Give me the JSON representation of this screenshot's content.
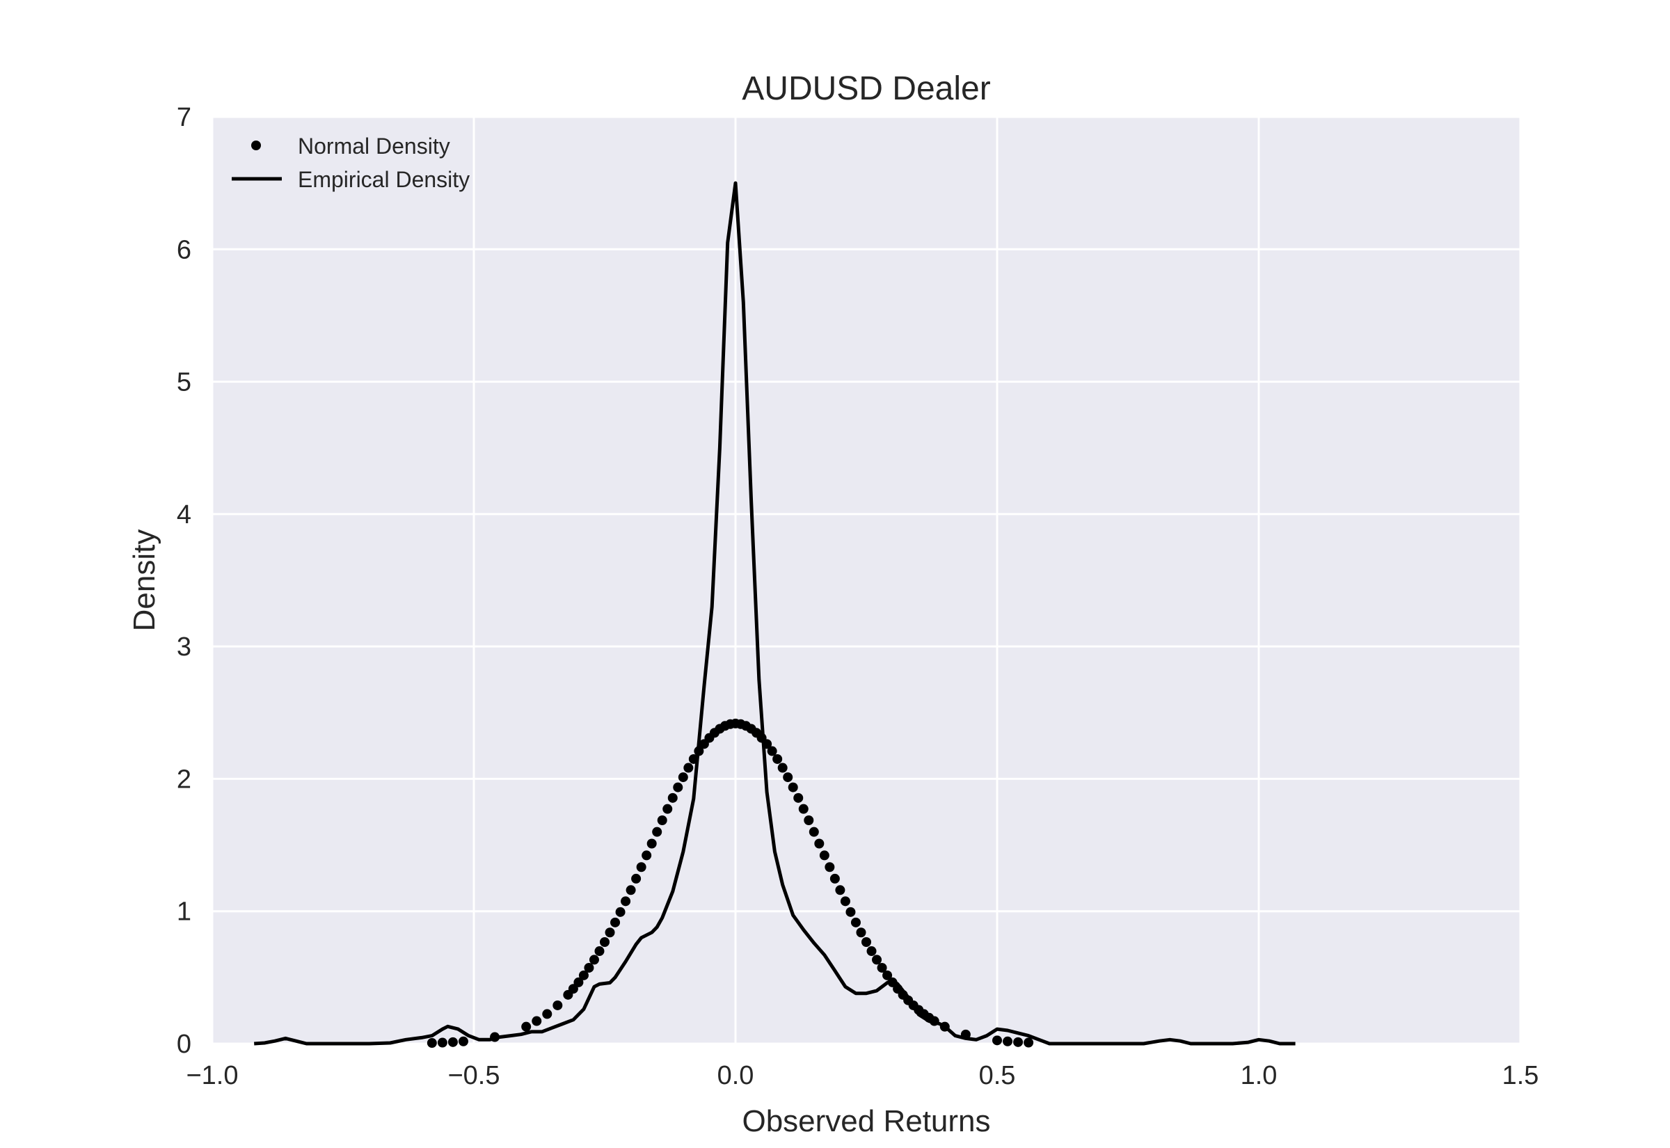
{
  "chart_data": {
    "type": "line",
    "title": "AUDUSD Dealer",
    "xlabel": "Observed Returns",
    "ylabel": "Density",
    "xlim": [
      -1.0,
      1.5
    ],
    "ylim": [
      0,
      7
    ],
    "x_ticks": [
      -1.0,
      -0.5,
      0.0,
      0.5,
      1.0,
      1.5
    ],
    "x_tick_labels": [
      "−1.0",
      "−0.5",
      "0.0",
      "0.5",
      "1.0",
      "1.5"
    ],
    "y_ticks": [
      0,
      1,
      2,
      3,
      4,
      5,
      6,
      7
    ],
    "y_tick_labels": [
      "0",
      "1",
      "2",
      "3",
      "4",
      "5",
      "6",
      "7"
    ],
    "grid": true,
    "background": "#eaeaf2",
    "grid_color": "#ffffff",
    "legend_position": "upper-left",
    "series": [
      {
        "name": "Normal Density",
        "style": "dots",
        "color": "#000000",
        "mu": 0.0,
        "sigma": 0.165,
        "x": [
          -0.58,
          -0.56,
          -0.54,
          -0.52,
          -0.46,
          -0.4,
          -0.38,
          -0.36,
          -0.34,
          -0.32,
          -0.31,
          -0.3,
          -0.29,
          -0.28,
          -0.27,
          -0.26,
          -0.25,
          -0.24,
          -0.23,
          -0.22,
          -0.21,
          -0.2,
          -0.19,
          -0.18,
          -0.17,
          -0.16,
          -0.15,
          -0.14,
          -0.13,
          -0.12,
          -0.11,
          -0.1,
          -0.09,
          -0.08,
          -0.07,
          -0.06,
          -0.05,
          -0.04,
          -0.03,
          -0.02,
          -0.01,
          0.0,
          0.01,
          0.02,
          0.03,
          0.04,
          0.05,
          0.06,
          0.07,
          0.08,
          0.09,
          0.1,
          0.11,
          0.12,
          0.13,
          0.14,
          0.15,
          0.16,
          0.17,
          0.18,
          0.19,
          0.2,
          0.21,
          0.22,
          0.23,
          0.24,
          0.25,
          0.26,
          0.27,
          0.28,
          0.29,
          0.3,
          0.31,
          0.32,
          0.33,
          0.34,
          0.35,
          0.36,
          0.37,
          0.38,
          0.4,
          0.44,
          0.5,
          0.52,
          0.54,
          0.56
        ]
      },
      {
        "name": "Empirical Density",
        "style": "line",
        "color": "#000000",
        "points": [
          [
            -0.92,
            0.0
          ],
          [
            -0.9,
            0.005
          ],
          [
            -0.88,
            0.02
          ],
          [
            -0.86,
            0.04
          ],
          [
            -0.84,
            0.02
          ],
          [
            -0.82,
            0.0
          ],
          [
            -0.8,
            0.0
          ],
          [
            -0.7,
            0.0
          ],
          [
            -0.66,
            0.005
          ],
          [
            -0.63,
            0.03
          ],
          [
            -0.6,
            0.045
          ],
          [
            -0.58,
            0.06
          ],
          [
            -0.56,
            0.11
          ],
          [
            -0.55,
            0.13
          ],
          [
            -0.53,
            0.11
          ],
          [
            -0.51,
            0.06
          ],
          [
            -0.49,
            0.03
          ],
          [
            -0.47,
            0.03
          ],
          [
            -0.45,
            0.05
          ],
          [
            -0.43,
            0.06
          ],
          [
            -0.41,
            0.07
          ],
          [
            -0.39,
            0.09
          ],
          [
            -0.37,
            0.09
          ],
          [
            -0.35,
            0.12
          ],
          [
            -0.33,
            0.15
          ],
          [
            -0.31,
            0.18
          ],
          [
            -0.29,
            0.26
          ],
          [
            -0.27,
            0.43
          ],
          [
            -0.26,
            0.45
          ],
          [
            -0.24,
            0.46
          ],
          [
            -0.23,
            0.5
          ],
          [
            -0.21,
            0.62
          ],
          [
            -0.19,
            0.75
          ],
          [
            -0.18,
            0.8
          ],
          [
            -0.16,
            0.84
          ],
          [
            -0.15,
            0.88
          ],
          [
            -0.14,
            0.95
          ],
          [
            -0.12,
            1.15
          ],
          [
            -0.1,
            1.45
          ],
          [
            -0.08,
            1.85
          ],
          [
            -0.06,
            2.7
          ],
          [
            -0.045,
            3.3
          ],
          [
            -0.03,
            4.5
          ],
          [
            -0.015,
            6.05
          ],
          [
            0.0,
            6.5
          ],
          [
            0.015,
            5.6
          ],
          [
            0.03,
            4.1
          ],
          [
            0.045,
            2.75
          ],
          [
            0.06,
            1.9
          ],
          [
            0.075,
            1.45
          ],
          [
            0.09,
            1.2
          ],
          [
            0.11,
            0.97
          ],
          [
            0.13,
            0.86
          ],
          [
            0.15,
            0.76
          ],
          [
            0.17,
            0.67
          ],
          [
            0.19,
            0.55
          ],
          [
            0.21,
            0.43
          ],
          [
            0.23,
            0.38
          ],
          [
            0.25,
            0.38
          ],
          [
            0.27,
            0.4
          ],
          [
            0.29,
            0.46
          ],
          [
            0.3,
            0.48
          ],
          [
            0.31,
            0.45
          ],
          [
            0.33,
            0.35
          ],
          [
            0.35,
            0.22
          ],
          [
            0.37,
            0.17
          ],
          [
            0.39,
            0.15
          ],
          [
            0.4,
            0.13
          ],
          [
            0.42,
            0.06
          ],
          [
            0.44,
            0.04
          ],
          [
            0.46,
            0.03
          ],
          [
            0.48,
            0.06
          ],
          [
            0.5,
            0.11
          ],
          [
            0.52,
            0.1
          ],
          [
            0.54,
            0.08
          ],
          [
            0.56,
            0.06
          ],
          [
            0.58,
            0.03
          ],
          [
            0.6,
            0.0
          ],
          [
            0.62,
            0.0
          ],
          [
            0.78,
            0.0
          ],
          [
            0.81,
            0.02
          ],
          [
            0.83,
            0.03
          ],
          [
            0.85,
            0.02
          ],
          [
            0.87,
            0.0
          ],
          [
            0.95,
            0.0
          ],
          [
            0.98,
            0.01
          ],
          [
            1.0,
            0.03
          ],
          [
            1.02,
            0.02
          ],
          [
            1.04,
            0.0
          ],
          [
            1.07,
            0.0
          ]
        ]
      }
    ]
  }
}
